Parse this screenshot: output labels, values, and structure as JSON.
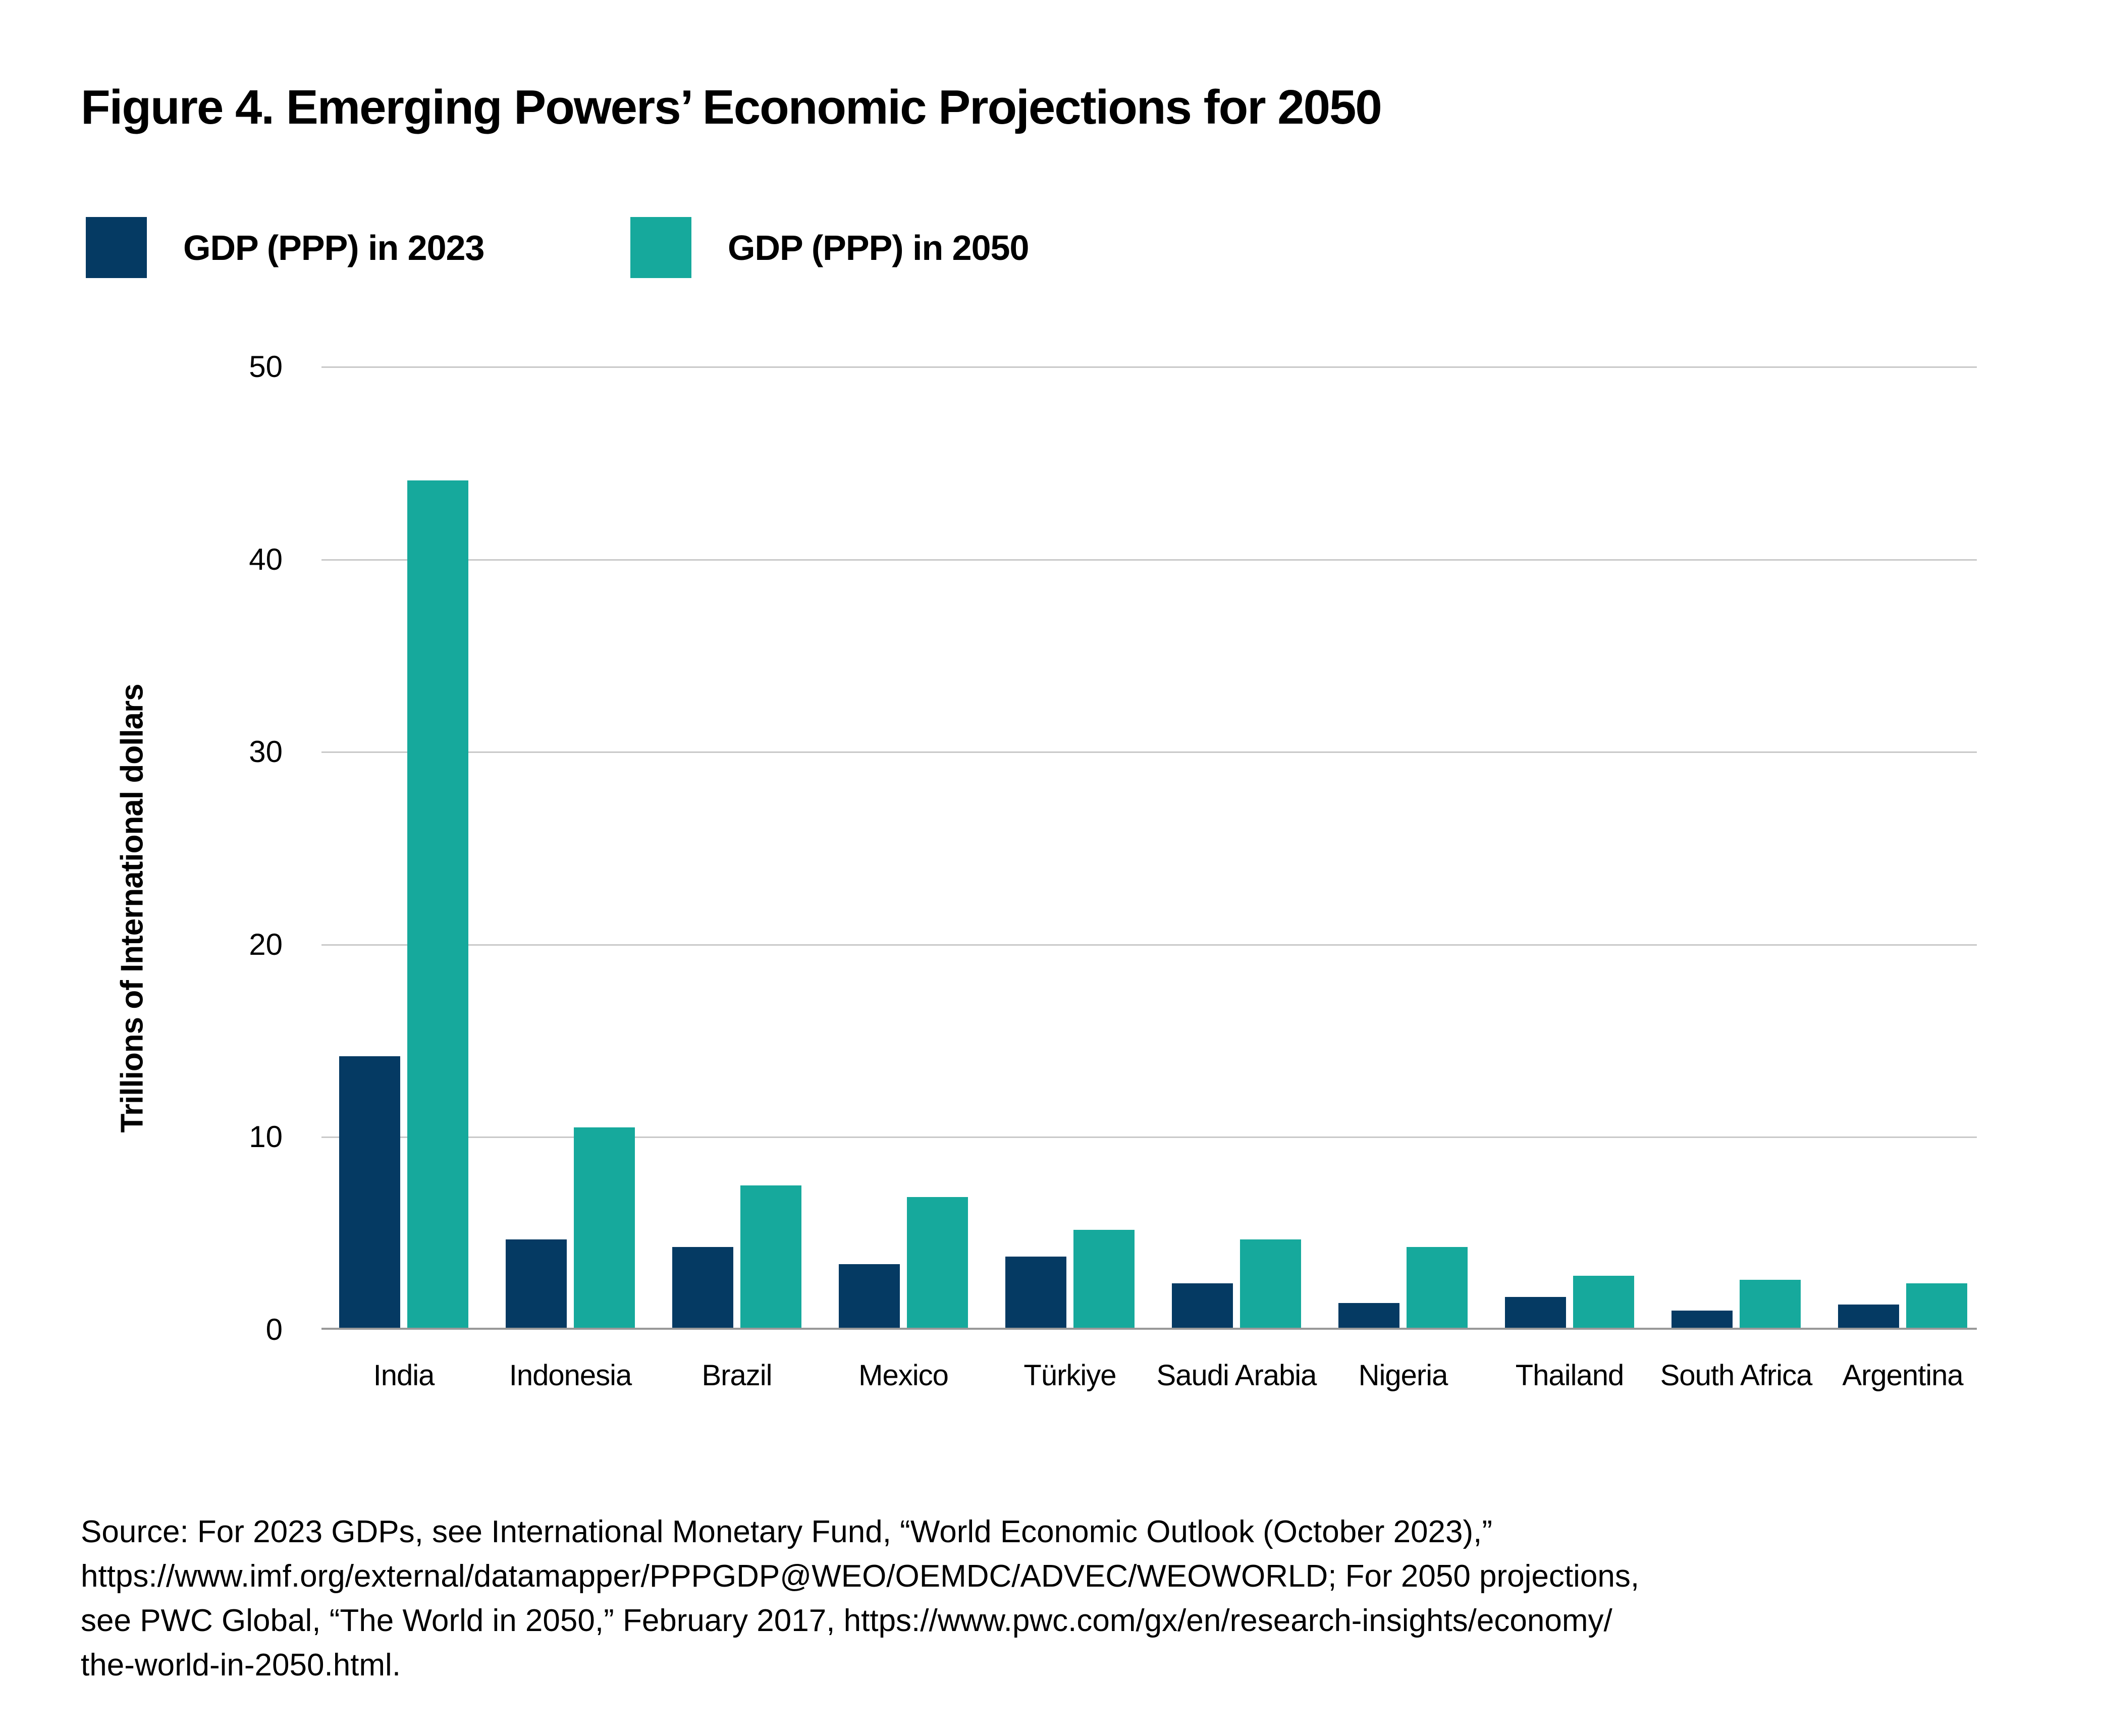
{
  "figure": {
    "title": "Figure 4. Emerging Powers’ Economic Projections for 2050",
    "y_axis_label": "Trillions of International dollars",
    "source_lines": [
      "Source: For 2023 GDPs, see International Monetary Fund, “World Economic Outlook (October 2023),”",
      "https://www.imf.org/external/datamapper/PPPGDP@WEO/OEMDC/ADVEC/WEOWORLD; For 2050 projections,",
      "see PWC Global, “The World in 2050,” February 2017, https://www.pwc.com/gx/en/research-insights/economy/",
      "the-world-in-2050.html."
    ]
  },
  "legend": {
    "items": [
      {
        "label": "GDP (PPP) in 2023",
        "color": "#053a63"
      },
      {
        "label": "GDP (PPP) in 2050",
        "color": "#16a99c"
      }
    ]
  },
  "colors": {
    "navy": "#053a63",
    "teal": "#16a99c",
    "gridline": "#c9c9c9",
    "baseline": "#999999",
    "text": "#000000"
  },
  "chart_data": {
    "type": "bar",
    "title": "Figure 4. Emerging Powers’ Economic Projections for 2050",
    "categories": [
      "India",
      "Indonesia",
      "Brazil",
      "Mexico",
      "Türkiye",
      "Saudi Arabia",
      "Nigeria",
      "Thailand",
      "South Africa",
      "Argentina"
    ],
    "series": [
      {
        "name": "GDP (PPP) in 2023",
        "color": "#053a63",
        "values": [
          14.2,
          4.7,
          4.3,
          3.4,
          3.8,
          2.4,
          1.4,
          1.7,
          1.0,
          1.3
        ]
      },
      {
        "name": "GDP (PPP) in 2050",
        "color": "#16a99c",
        "values": [
          44.1,
          10.5,
          7.5,
          6.9,
          5.2,
          4.7,
          4.3,
          2.8,
          2.6,
          2.4
        ]
      }
    ],
    "xlabel": "",
    "ylabel": "Trillions of International dollars",
    "ylim": [
      0,
      50
    ],
    "yticks": [
      0,
      10,
      20,
      30,
      40,
      50
    ],
    "grid": true,
    "legend_position": "top-left"
  }
}
